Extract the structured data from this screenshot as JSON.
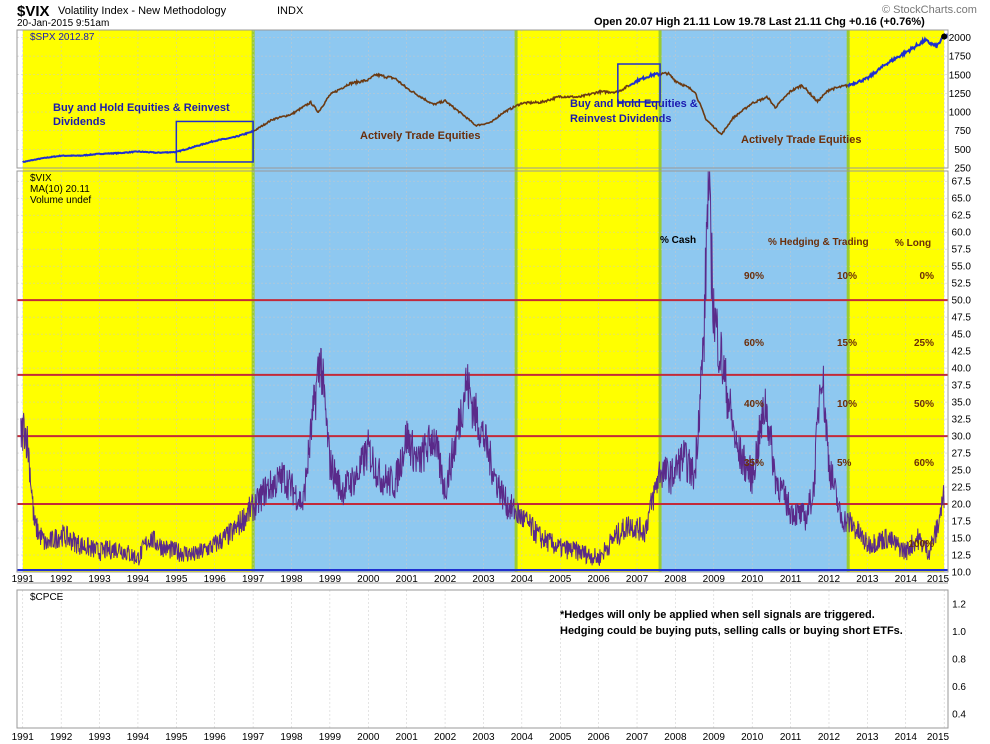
{
  "header": {
    "symbol": "$VIX",
    "description": "Volatility Index - New Methodology",
    "exchange": "INDX",
    "datetime": "20-Jan-2015 9:51am",
    "quote": "Open 20.07  High 21.11  Low 19.78  Last 21.11  Chg +0.16 (+0.76%)",
    "watermark": "© StockCharts.com"
  },
  "chart_data": [
    {
      "type": "line",
      "panel": "price",
      "legend": "$SPX 2012.87",
      "series_name": "$SPX",
      "ylim": [
        250,
        2100
      ],
      "y_ticks": [
        250,
        500,
        750,
        1000,
        1250,
        1500,
        1750,
        2000
      ],
      "x_ticks": [
        "1991",
        "1992",
        "1993",
        "1994",
        "1995",
        "1996",
        "1997",
        "1998",
        "1999",
        "2000",
        "2001",
        "2002",
        "2003",
        "2004",
        "2005",
        "2006",
        "2007",
        "2008",
        "2009",
        "2010",
        "2011",
        "2012",
        "2013",
        "2014",
        "2015"
      ],
      "x": [
        1991.0,
        1991.5,
        1992.0,
        1992.5,
        1993.0,
        1993.5,
        1994.0,
        1994.5,
        1995.0,
        1995.5,
        1996.0,
        1996.5,
        1997.0,
        1997.5,
        1998.0,
        1998.5,
        1998.7,
        1999.0,
        1999.5,
        2000.0,
        2000.2,
        2000.7,
        2001.0,
        2001.7,
        2002.0,
        2002.5,
        2002.8,
        2003.2,
        2003.5,
        2004.0,
        2004.5,
        2005.0,
        2005.5,
        2006.0,
        2006.5,
        2007.0,
        2007.4,
        2007.8,
        2008.0,
        2008.5,
        2008.8,
        2009.2,
        2009.5,
        2010.0,
        2010.4,
        2010.6,
        2011.0,
        2011.3,
        2011.7,
        2012.0,
        2012.5,
        2013.0,
        2013.5,
        2014.0,
        2014.5,
        2014.8,
        2015.0
      ],
      "y": [
        330,
        380,
        415,
        415,
        440,
        450,
        470,
        455,
        465,
        540,
        615,
        660,
        740,
        900,
        970,
        1130,
        1000,
        1230,
        1380,
        1430,
        1500,
        1450,
        1320,
        1100,
        1150,
        950,
        820,
        860,
        990,
        1120,
        1130,
        1210,
        1200,
        1270,
        1270,
        1420,
        1500,
        1520,
        1420,
        1280,
        900,
        700,
        920,
        1120,
        1200,
        1060,
        1280,
        1360,
        1140,
        1300,
        1360,
        1450,
        1650,
        1800,
        1960,
        1880,
        2012.87
      ],
      "segment_colors": [
        {
          "from": 1991.0,
          "to": 1997.0,
          "color": "#1f2fd0"
        },
        {
          "from": 1997.0,
          "to": 2006.8,
          "color": "#6b3a12"
        },
        {
          "from": 2006.8,
          "to": 2007.6,
          "color": "#1f2fd0"
        },
        {
          "from": 2007.6,
          "to": 2012.5,
          "color": "#6b3a12"
        },
        {
          "from": 2012.5,
          "to": 2015.1,
          "color": "#1f2fd0"
        }
      ]
    },
    {
      "type": "line",
      "panel": "vix",
      "legend": [
        "$VIX",
        "MA(10) 20.11",
        "Volume undef"
      ],
      "series_name": "$VIX",
      "ylim": [
        10,
        69
      ],
      "y_ticks": [
        10.0,
        12.5,
        15.0,
        17.5,
        20.0,
        22.5,
        25.0,
        27.5,
        30.0,
        32.5,
        35.0,
        37.5,
        40.0,
        42.5,
        45.0,
        47.5,
        50.0,
        52.5,
        55.0,
        57.5,
        60.0,
        62.5,
        65.0,
        67.5
      ],
      "x_ticks": [
        "1991",
        "1992",
        "1993",
        "1994",
        "1995",
        "1996",
        "1997",
        "1998",
        "1999",
        "2000",
        "2001",
        "2002",
        "2003",
        "2004",
        "2005",
        "2006",
        "2007",
        "2008",
        "2009",
        "2010",
        "2011",
        "2012",
        "2013",
        "2014",
        "2015"
      ],
      "x": [
        1990.95,
        1991.05,
        1991.15,
        1991.3,
        1991.6,
        1992.0,
        1992.5,
        1993.0,
        1993.5,
        1994.0,
        1994.3,
        1994.7,
        1995.0,
        1995.5,
        1996.0,
        1996.5,
        1996.9,
        1997.1,
        1997.3,
        1997.8,
        1998.3,
        1998.5,
        1998.75,
        1999.0,
        1999.3,
        1999.7,
        2000.0,
        2000.3,
        2000.7,
        2001.0,
        2001.3,
        2001.7,
        2002.0,
        2002.3,
        2002.55,
        2002.8,
        2003.0,
        2003.3,
        2003.6,
        2004.0,
        2004.5,
        2005.0,
        2005.5,
        2006.0,
        2006.4,
        2006.8,
        2007.2,
        2007.6,
        2007.9,
        2008.2,
        2008.5,
        2008.75,
        2008.85,
        2009.0,
        2009.3,
        2009.6,
        2010.0,
        2010.35,
        2010.6,
        2011.0,
        2011.4,
        2011.6,
        2011.8,
        2012.0,
        2012.3,
        2012.6,
        2013.0,
        2013.5,
        2014.0,
        2014.3,
        2014.6,
        2014.8,
        2014.95,
        2015.0
      ],
      "y": [
        30,
        31.5,
        28,
        17,
        14,
        15.5,
        14,
        13,
        13.5,
        12,
        15,
        13.5,
        13,
        12.5,
        14,
        16,
        19,
        20,
        22,
        24,
        20,
        30,
        42,
        26,
        22,
        24,
        28,
        24,
        23,
        30,
        26,
        30,
        22,
        30,
        38,
        33,
        30,
        24,
        20,
        18,
        15,
        13.5,
        13,
        12,
        15,
        17,
        16,
        25,
        24,
        27,
        24,
        45,
        68,
        48,
        38,
        28,
        24,
        35,
        24,
        19,
        18,
        22,
        41,
        26,
        18,
        17,
        14,
        15,
        13,
        15,
        13,
        16,
        20,
        21.11
      ],
      "ma10_last": "20.11"
    },
    {
      "type": "line",
      "panel": "cpce",
      "legend": "$CPCE",
      "ylim": [
        0.3,
        1.3
      ],
      "y_ticks": [
        0.4,
        0.6,
        0.8,
        1.0,
        1.2
      ],
      "x_ticks": [
        "1991",
        "1992",
        "1993",
        "1994",
        "1995",
        "1996",
        "1997",
        "1998",
        "1999",
        "2000",
        "2001",
        "2002",
        "2003",
        "2004",
        "2005",
        "2006",
        "2007",
        "2008",
        "2009",
        "2010",
        "2011",
        "2012",
        "2013",
        "2014",
        "2015"
      ]
    }
  ],
  "regimes": [
    {
      "from": 1991.0,
      "to": 1997.0,
      "color": "#ffff00",
      "label": "Buy and Hold Equities & Reinvest Dividends"
    },
    {
      "from": 1997.0,
      "to": 2003.85,
      "color": "#8ec8f0",
      "label": "Actively Trade Equities"
    },
    {
      "from": 2003.85,
      "to": 2007.6,
      "color": "#ffff00",
      "label": "Buy and Hold Equities & Reinvest Dividends"
    },
    {
      "from": 2007.6,
      "to": 2012.5,
      "color": "#8ec8f0",
      "label": "Actively Trade Equities"
    },
    {
      "from": 2012.5,
      "to": 2015.0,
      "color": "#ffff00",
      "label": ""
    }
  ],
  "zoom_boxes": [
    {
      "from": 1995.0,
      "to": 1997.0
    },
    {
      "from": 2006.5,
      "to": 2007.6
    }
  ],
  "threshold_lines": [
    50,
    39,
    30,
    20
  ],
  "allocation_table": {
    "headers": [
      "% Cash",
      "% Hedging & Trading",
      "% Long"
    ],
    "rows": [
      {
        "level": 50,
        "cash": "90%",
        "hedge": "10%",
        "long": "0%"
      },
      {
        "level": 39,
        "cash": "60%",
        "hedge": "15%",
        "long": "25%"
      },
      {
        "level": 30,
        "cash": "40%",
        "hedge": "10%",
        "long": "50%"
      },
      {
        "level": 20,
        "cash": "35%",
        "hedge": "5%",
        "long": "60%"
      },
      {
        "level": 13,
        "cash": "",
        "hedge": "",
        "long": "100%"
      }
    ]
  },
  "notes": {
    "hedge_note_1": "*Hedges will only be applied when sell signals are triggered.",
    "hedge_note_2": "Hedging could be buying puts, selling calls or buying short ETFs."
  },
  "colors": {
    "yellow": "#ffff00",
    "blue_band": "#8ec8f0",
    "spx_blue": "#1f2fd0",
    "spx_brown": "#6b3a12",
    "vix_purple": "#5a2a8a",
    "threshold_line": "#c22a3a",
    "divider_green": "#9ccc30",
    "annotation_blue": "#1a1ab0",
    "annotation_brown": "#6b2e0a",
    "base_line": "#1f2fd0"
  }
}
